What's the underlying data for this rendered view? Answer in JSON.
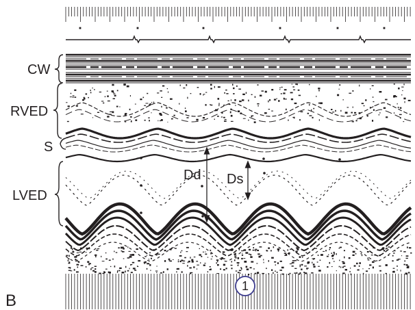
{
  "panel_label": "B",
  "structure_labels": {
    "chest_wall": "CW",
    "right_ventricle": "RVED",
    "septum": "S",
    "left_ventricle": "LVED"
  },
  "measurements": {
    "diastolic_dimension": "Dd",
    "systolic_dimension": "Ds"
  },
  "marker": "1",
  "colors": {
    "ink": "#231f20",
    "marker_outline": "#3b3a8c",
    "background": "#ffffff"
  }
}
